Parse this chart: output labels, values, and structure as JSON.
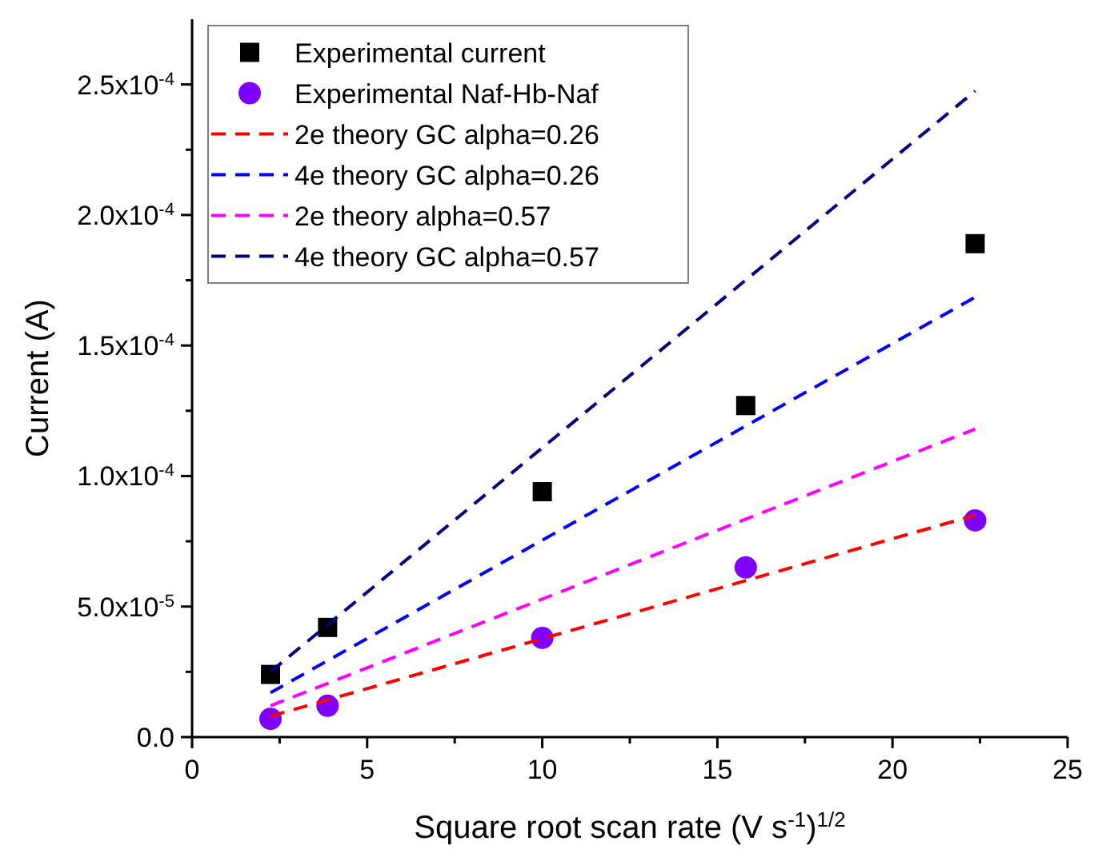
{
  "chart_data": {
    "type": "scatter",
    "xlabel": "Square root scan rate (V s$^{-1}$)$^{1/2}$",
    "ylabel": "Current (A)",
    "xlim": [
      0,
      25
    ],
    "xticks": [
      0,
      {
        "value": 2.5,
        "label": null
      },
      5,
      {
        "value": 7.5,
        "label": null
      },
      10,
      {
        "value": 12.5,
        "label": null
      },
      15,
      {
        "value": 17.5,
        "label": null
      },
      20,
      {
        "value": 22.5,
        "label": null
      },
      25
    ],
    "ylim": [
      0,
      0.000275
    ],
    "yticks": [
      {
        "value": 0,
        "label": "0.0"
      },
      {
        "value": 2.5e-05,
        "label": null
      },
      {
        "value": 5e-05,
        "label": "5.0x10$^{-5}$"
      },
      {
        "value": 7.5e-05,
        "label": null
      },
      {
        "value": 0.0001,
        "label": "1.0x10$^{-4}$"
      },
      {
        "value": 0.000125,
        "label": null
      },
      {
        "value": 0.00015,
        "label": "1.5x10$^{-4}$"
      },
      {
        "value": 0.000175,
        "label": null
      },
      {
        "value": 0.0002,
        "label": "2.0x10$^{-4}$"
      },
      {
        "value": 0.000225,
        "label": null
      },
      {
        "value": 0.00025,
        "label": "2.5x10$^{-4}$"
      }
    ],
    "grid": false,
    "legend": "top left",
    "series": [
      {
        "name": "Experimental current",
        "marker": "square",
        "color": "#000000",
        "x": [
          2.24,
          3.87,
          10,
          15.81,
          22.36
        ],
        "values": [
          2.4e-05,
          4.2e-05,
          9.4e-05,
          0.000127,
          0.000189
        ]
      },
      {
        "name": "Experimental Naf-Hb-Naf",
        "marker": "circle",
        "color": "#8000ff",
        "x": [
          2.24,
          3.87,
          10,
          15.81,
          22.36
        ],
        "values": [
          7e-06,
          1.2e-05,
          3.8e-05,
          6.5e-05,
          8.3e-05
        ]
      },
      {
        "name": "2e theory GC alpha=0.26",
        "type": "line",
        "marker": "none",
        "line_style": "dashed",
        "color": "#ff0000",
        "x": [
          2.24,
          22.36
        ],
        "values": [
          8e-06,
          8.5e-05
        ]
      },
      {
        "name": "4e theory GC alpha=0.26",
        "type": "line",
        "marker": "none",
        "line_style": "dashed",
        "color": "#0000ff",
        "x": [
          2.24,
          22.36
        ],
        "values": [
          1.7e-05,
          0.0001685
        ]
      },
      {
        "name": "2e theory alpha=0.57",
        "type": "line",
        "marker": "none",
        "line_style": "dashed",
        "color": "#ff00ff",
        "x": [
          2.24,
          22.36
        ],
        "values": [
          1.2e-05,
          0.000118
        ]
      },
      {
        "name": "4e theory GC alpha=0.57",
        "type": "line",
        "marker": "none",
        "line_style": "dashed",
        "color": "#000080",
        "x": [
          2.24,
          22.36
        ],
        "values": [
          2.5e-05,
          0.0002475
        ]
      }
    ]
  }
}
